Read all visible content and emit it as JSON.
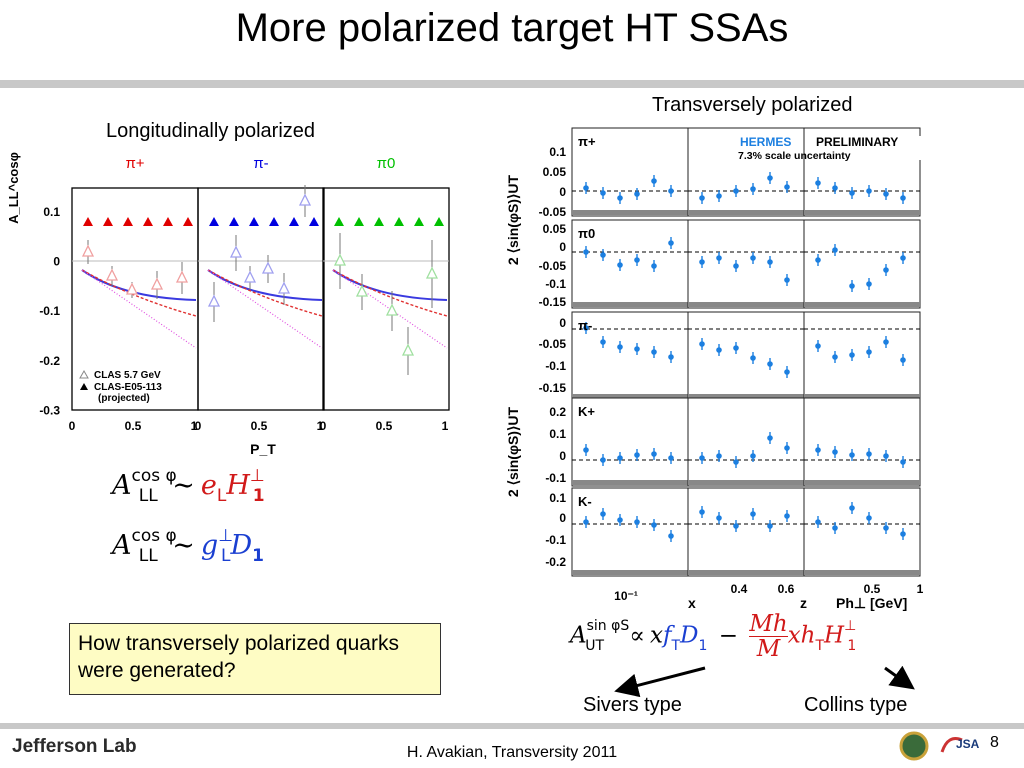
{
  "title": "More polarized target HT SSAs",
  "labels": {
    "longitudinal": "Longitudinally polarized",
    "transverse": "Transversely polarized"
  },
  "callout": "How transversely polarized quarks were generated?",
  "arrows": {
    "sivers": "Sivers type",
    "collins": "Collins type"
  },
  "footer": {
    "text": "H. Avakian, Transversity 2011",
    "page": "8",
    "logo": "Jefferson Lab"
  },
  "left_plot": {
    "panels": [
      "π+",
      "π-",
      "π0"
    ],
    "y_axis_label": "A_LL^cosφ",
    "x_axis_label": "P_T",
    "y_ticks": [
      "0.1",
      "0",
      "-0.1",
      "-0.2",
      "-0.3"
    ],
    "x_ticks": [
      [
        "0",
        "0.5",
        "1"
      ],
      [
        "0",
        "0.5",
        "1"
      ],
      [
        "0",
        "0.5",
        "1"
      ]
    ],
    "legend": [
      "CLAS 5.7 GeV",
      "CLAS-E05-113",
      "(projected)"
    ],
    "colors": {
      "pi_plus": "#e00000",
      "pi_minus": "#0000e0",
      "pi_zero": "#00c000"
    }
  },
  "equations": {
    "eq1": {
      "lhs": "A",
      "sup": "cos φ",
      "sub": "LL",
      "rel": "∼",
      "rhs1": "e",
      "rhs1_sub": "L",
      "rhs2": "H",
      "rhs2_sup": "⊥",
      "rhs2_sub": "1"
    },
    "eq2": {
      "lhs": "A",
      "sup": "cos φ",
      "sub": "LL",
      "rel": "∼",
      "rhs1": "g",
      "rhs1_sup": "⊥",
      "rhs1_sub": "L",
      "rhs2": "D",
      "rhs2_sub": "1"
    },
    "eq3": {
      "lhs": "A",
      "sup": "sin φS",
      "sub": "UT",
      "rel": "∝",
      "t1": "x",
      "t2": "f",
      "t2_sub": "T",
      "t3": "D",
      "t3_sub": "1",
      "minus": "−",
      "num": "Mh",
      "den": "M",
      "t4": "xh",
      "t4_sub": "T",
      "t5": "H",
      "t5_sup": "⊥",
      "t5_sub": "1"
    }
  },
  "right_plot": {
    "banner": {
      "hermes": "HERMES",
      "preliminary": "PRELIMINARY",
      "scale": "7.3% scale uncertainty"
    },
    "y_axis_label": "2 ⟨sin(φS)⟩UT",
    "rows": [
      {
        "name": "π+",
        "ticks": [
          "0.1",
          "0.05",
          "0",
          "-0.05"
        ]
      },
      {
        "name": "π0",
        "ticks": [
          "0.05",
          "0",
          "-0.05",
          "-0.1",
          "-0.15"
        ]
      },
      {
        "name": "π-",
        "ticks": [
          "0",
          "-0.05",
          "-0.1",
          "-0.15"
        ]
      },
      {
        "name": "K+",
        "ticks": [
          "0.2",
          "0.1",
          "0",
          "-0.1"
        ]
      },
      {
        "name": "K-",
        "ticks": [
          "0.1",
          "0",
          "-0.1",
          "-0.2"
        ]
      }
    ],
    "x_labels": {
      "x": "x",
      "z": "z",
      "pt": "Ph⊥ [GeV]"
    },
    "x_ticks": {
      "x": [
        "10⁻¹"
      ],
      "z": [
        "0.4",
        "0.6"
      ],
      "pt": [
        "0.5",
        "1"
      ]
    }
  }
}
